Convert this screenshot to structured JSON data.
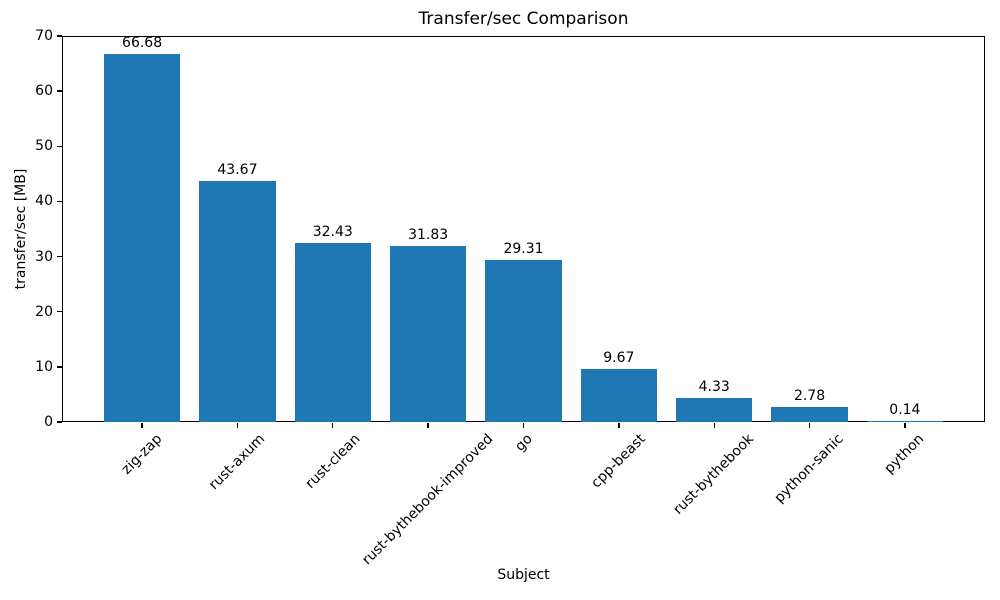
{
  "chart_data": {
    "type": "bar",
    "title": "Transfer/sec Comparison",
    "xlabel": "Subject",
    "ylabel": "transfer/sec [MB]",
    "categories": [
      "zig-zap",
      "rust-axum",
      "rust-clean",
      "rust-bythebook-improved",
      "go",
      "cpp-beast",
      "rust-bythebook",
      "python-sanic",
      "python"
    ],
    "values": [
      66.68,
      43.67,
      32.43,
      31.83,
      29.31,
      9.67,
      4.33,
      2.78,
      0.14
    ],
    "bar_value_labels": [
      "66.68",
      "43.67",
      "32.43",
      "31.83",
      "29.31",
      "9.67",
      "4.33",
      "2.78",
      "0.14"
    ],
    "ylim": [
      0,
      70
    ],
    "yticks": [
      0,
      10,
      20,
      30,
      40,
      50,
      60,
      70
    ],
    "x_tick_rotation_deg": 45,
    "bar_color": "#1f77b4",
    "text_color": "#000000",
    "spine_color": "#000000",
    "background_color": "#ffffff",
    "grid": false,
    "legend": "none"
  }
}
